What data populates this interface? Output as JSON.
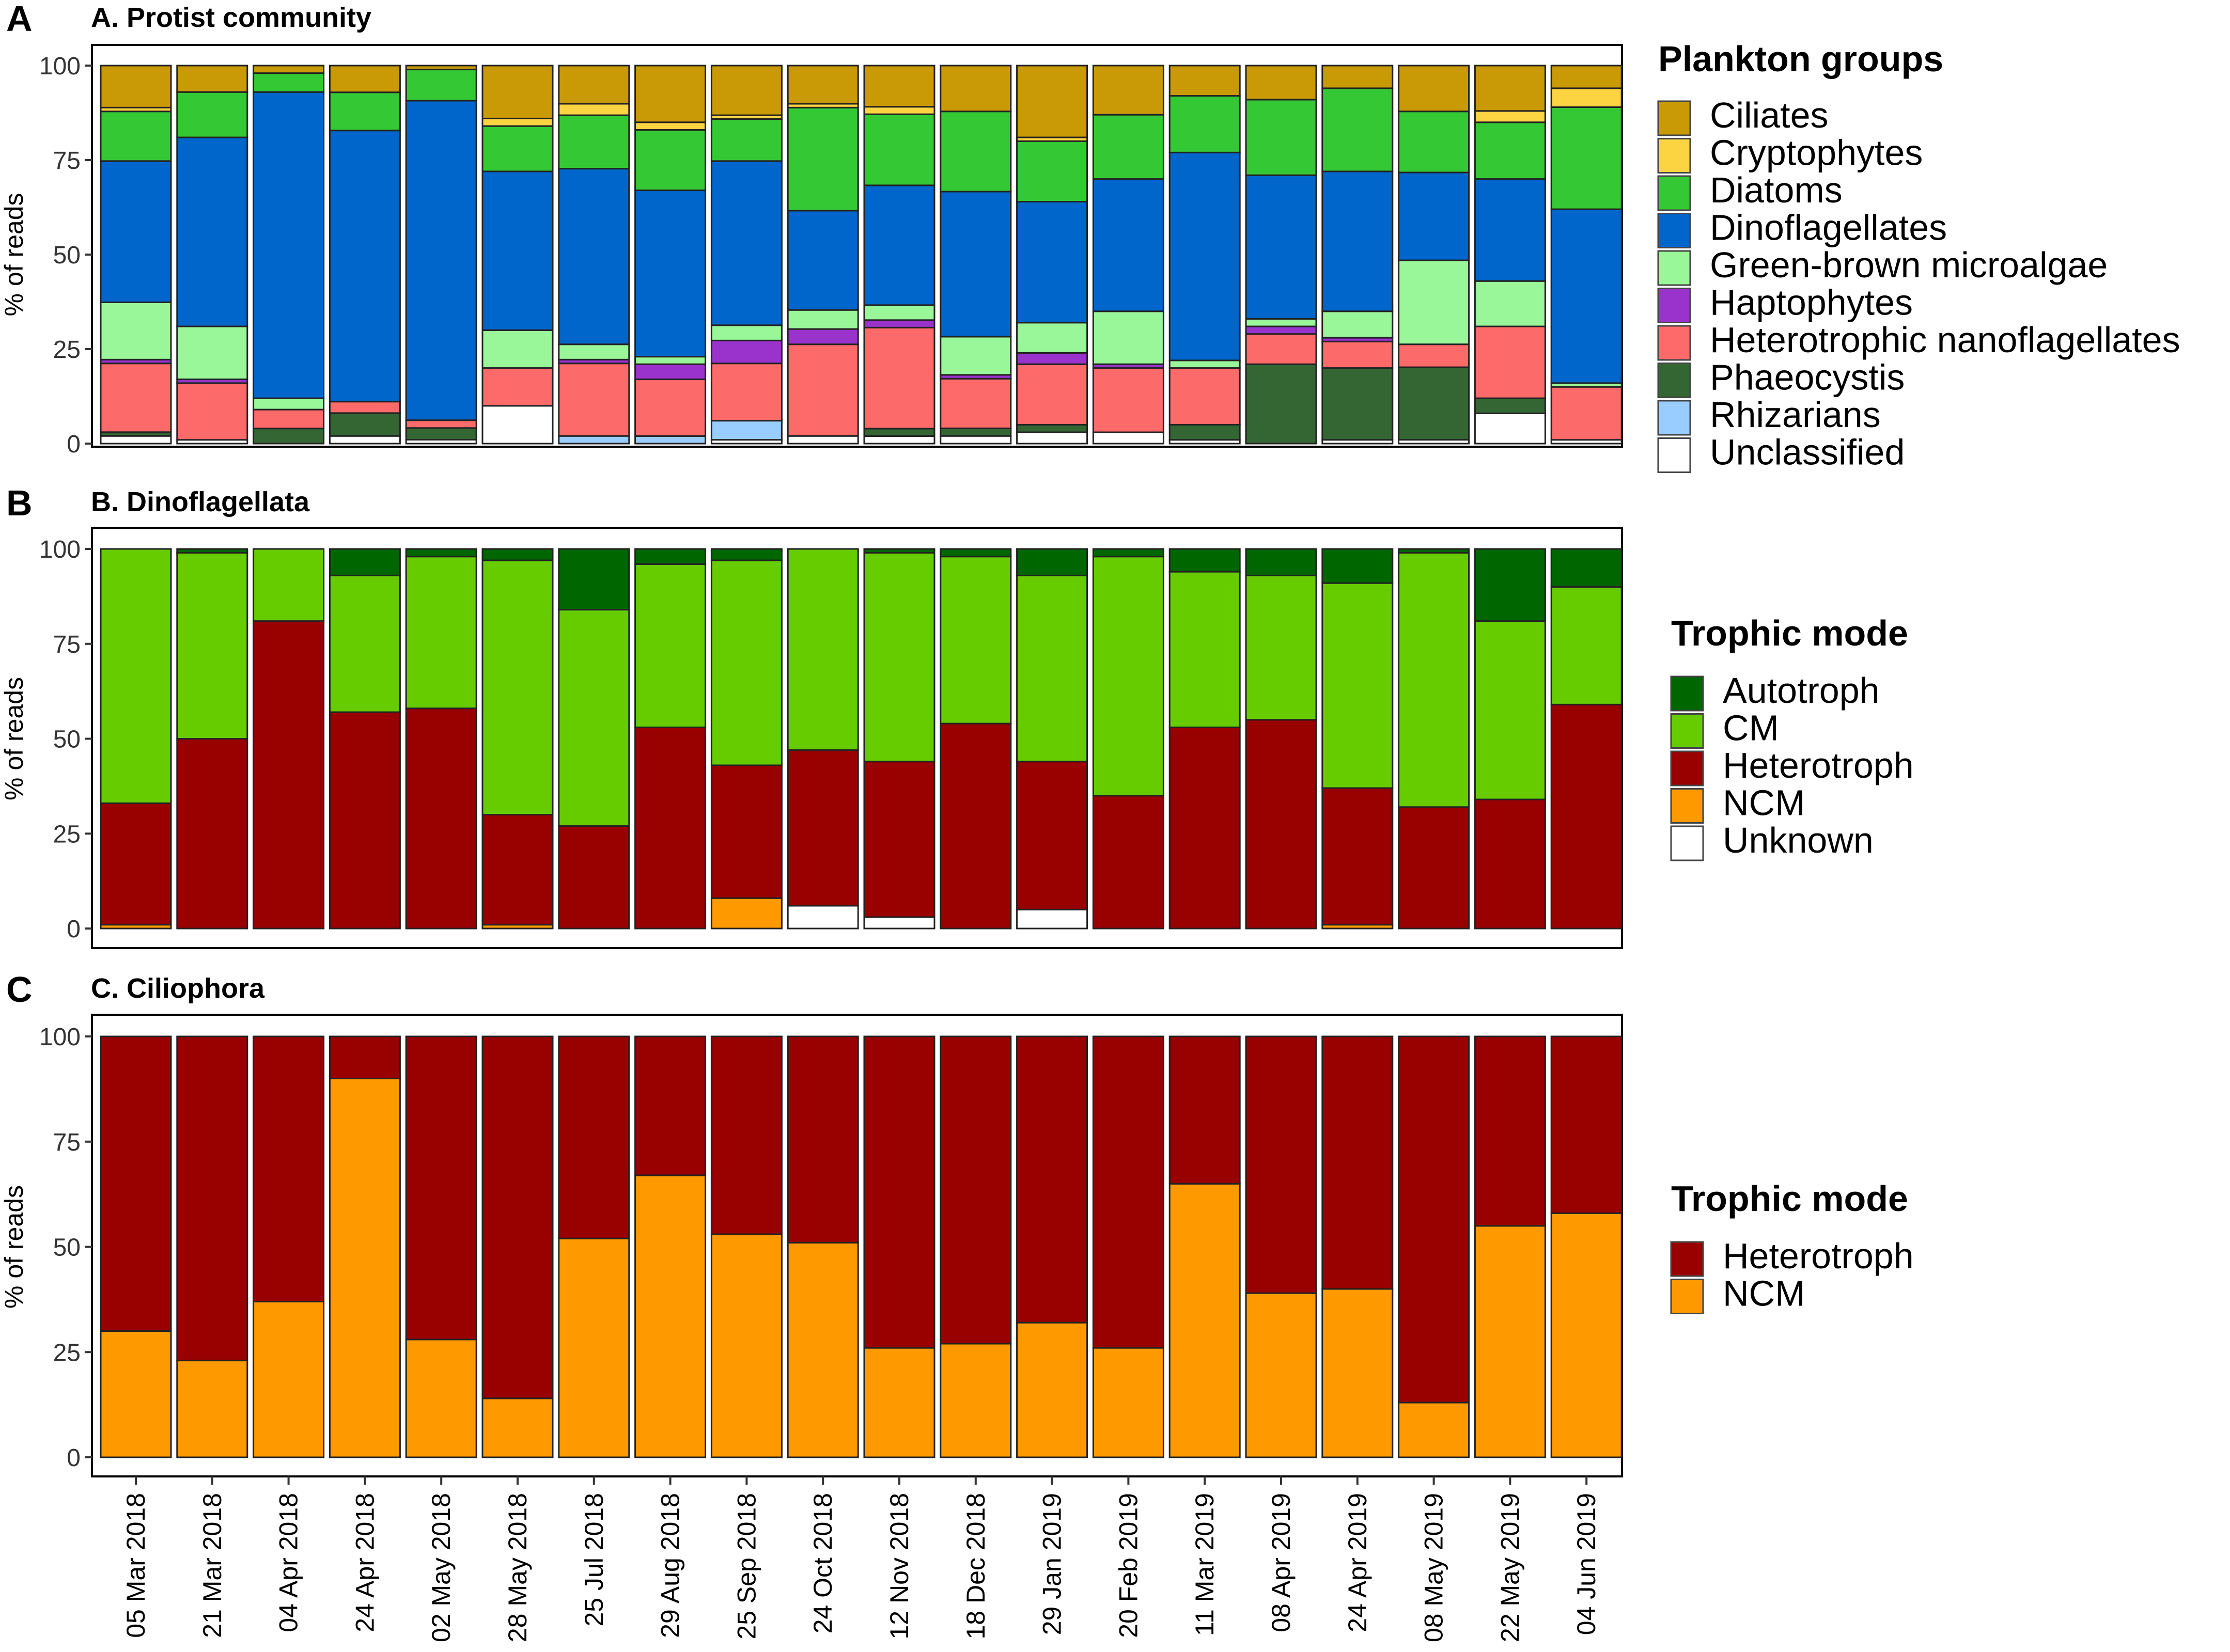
{
  "figure": {
    "dates": [
      "05 Mar 2018",
      "21 Mar 2018",
      "04 Apr 2018",
      "24 Apr 2018",
      "02 May 2018",
      "28 May 2018",
      "25 Jul 2018",
      "29 Aug 2018",
      "25 Sep 2018",
      "24 Oct 2018",
      "12 Nov 2018",
      "18 Dec 2018",
      "29 Jan 2019",
      "20 Feb 2019",
      "11 Mar 2019",
      "08 Apr 2019",
      "24 Apr 2019",
      "08 May 2019",
      "22 May 2019",
      "04 Jun 2019"
    ],
    "y_ticks": [
      "0",
      "25",
      "50",
      "75",
      "100"
    ],
    "ylabel": "% of reads"
  },
  "chart_data": [
    {
      "type": "bar",
      "stacked": true,
      "panel_letter": "A",
      "title": "A. Protist community",
      "ylabel": "% of reads",
      "ylim": [
        0,
        100
      ],
      "legend_title": "Plankton groups",
      "stack_order": [
        "Unclassified",
        "Rhizarians",
        "Phaeocystis",
        "Heterotrophic nanoflagellates",
        "Haptophytes",
        "Green-brown microalgae",
        "Dinoflagellates",
        "Diatoms",
        "Cryptophytes",
        "Ciliates"
      ],
      "series": [
        {
          "name": "Ciliates",
          "color": "#c99a06",
          "values": [
            11,
            7,
            2,
            7,
            1,
            14,
            10,
            15,
            13,
            10,
            11,
            12,
            19,
            13,
            8,
            9,
            6,
            12,
            12,
            6
          ]
        },
        {
          "name": "Cryptophytes",
          "color": "#fcd441",
          "values": [
            1,
            0,
            0,
            0,
            0,
            2,
            3,
            2,
            1,
            1,
            2,
            0,
            1,
            0,
            0,
            0,
            0,
            0,
            3,
            5
          ]
        },
        {
          "name": "Diatoms",
          "color": "#34c934",
          "values": [
            13,
            12,
            5,
            10,
            8,
            12,
            14,
            16,
            11,
            27,
            19,
            21,
            16,
            17,
            15,
            20,
            22,
            16,
            15,
            27
          ]
        },
        {
          "name": "Dinoflagellates",
          "color": "#0066cc",
          "values": [
            37,
            50,
            81,
            71,
            82,
            42,
            46,
            44,
            43,
            26,
            32,
            38,
            32,
            35,
            55,
            38,
            37,
            23,
            27,
            46
          ]
        },
        {
          "name": "Green-brown microalgae",
          "color": "#99f699",
          "values": [
            15,
            14,
            3,
            0,
            0,
            10,
            4,
            2,
            4,
            5,
            4,
            10,
            8,
            14,
            2,
            2,
            7,
            22,
            12,
            1
          ]
        },
        {
          "name": "Haptophytes",
          "color": "#9933cc",
          "values": [
            1,
            1,
            0,
            0,
            0,
            0,
            1,
            4,
            6,
            4,
            2,
            1,
            3,
            1,
            0,
            2,
            1,
            0,
            0,
            0
          ]
        },
        {
          "name": "Heterotrophic nanoflagellates",
          "color": "#fc6a6a",
          "values": [
            18,
            15,
            5,
            3,
            2,
            10,
            19,
            15,
            15,
            24,
            27,
            13,
            16,
            17,
            15,
            8,
            7,
            6,
            19,
            14
          ]
        },
        {
          "name": "Phaeocystis",
          "color": "#336633",
          "values": [
            1,
            0,
            4,
            6,
            3,
            0,
            0,
            0,
            0,
            0,
            2,
            2,
            2,
            0,
            4,
            21,
            19,
            19,
            4,
            0
          ]
        },
        {
          "name": "Rhizarians",
          "color": "#99ccff",
          "values": [
            0,
            0,
            0,
            0,
            0,
            0,
            2,
            2,
            5,
            0,
            0,
            0,
            0,
            0,
            0,
            0,
            0,
            0,
            0,
            0
          ]
        },
        {
          "name": "Unclassified",
          "color": "#ffffff",
          "values": [
            2,
            1,
            0,
            2,
            1,
            10,
            0,
            0,
            1,
            2,
            2,
            2,
            3,
            3,
            1,
            0,
            1,
            1,
            8,
            1
          ]
        }
      ]
    },
    {
      "type": "bar",
      "stacked": true,
      "panel_letter": "B",
      "title": "B. Dinoflagellata",
      "ylabel": "% of reads",
      "ylim": [
        0,
        100
      ],
      "legend_title": "Trophic mode",
      "stack_order": [
        "Unknown",
        "NCM",
        "Heterotroph",
        "CM",
        "Autotroph"
      ],
      "series": [
        {
          "name": "Autotroph",
          "color": "#006600",
          "values": [
            0,
            1,
            0,
            7,
            2,
            3,
            16,
            4,
            3,
            0,
            1,
            2,
            7,
            2,
            6,
            7,
            9,
            1,
            19,
            10
          ]
        },
        {
          "name": "CM",
          "color": "#66cc00",
          "values": [
            67,
            49,
            19,
            36,
            40,
            67,
            57,
            43,
            54,
            53,
            55,
            44,
            49,
            63,
            41,
            38,
            54,
            67,
            47,
            31
          ]
        },
        {
          "name": "Heterotroph",
          "color": "#990000",
          "values": [
            32,
            50,
            81,
            57,
            58,
            29,
            27,
            53,
            35,
            41,
            41,
            54,
            39,
            35,
            53,
            55,
            36,
            32,
            34,
            59
          ]
        },
        {
          "name": "NCM",
          "color": "#ff9900",
          "values": [
            1,
            0,
            0,
            0,
            0,
            1,
            0,
            0,
            8,
            0,
            0,
            0,
            0,
            0,
            0,
            0,
            1,
            0,
            0,
            0
          ]
        },
        {
          "name": "Unknown",
          "color": "#ffffff",
          "values": [
            0,
            0,
            0,
            0,
            0,
            0,
            0,
            0,
            0,
            6,
            3,
            0,
            5,
            0,
            0,
            0,
            0,
            0,
            0,
            0
          ]
        }
      ]
    },
    {
      "type": "bar",
      "stacked": true,
      "panel_letter": "C",
      "title": "C. Ciliophora",
      "ylabel": "% of reads",
      "ylim": [
        0,
        100
      ],
      "legend_title": "Trophic mode",
      "stack_order": [
        "NCM",
        "Heterotroph"
      ],
      "series": [
        {
          "name": "Heterotroph",
          "color": "#990000",
          "values": [
            70,
            77,
            63,
            10,
            72,
            86,
            48,
            33,
            47,
            49,
            74,
            73,
            68,
            74,
            35,
            61,
            60,
            87,
            45,
            42
          ]
        },
        {
          "name": "NCM",
          "color": "#ff9900",
          "values": [
            30,
            23,
            37,
            90,
            28,
            14,
            52,
            67,
            53,
            51,
            26,
            27,
            32,
            26,
            65,
            39,
            40,
            13,
            55,
            58
          ]
        }
      ]
    }
  ]
}
